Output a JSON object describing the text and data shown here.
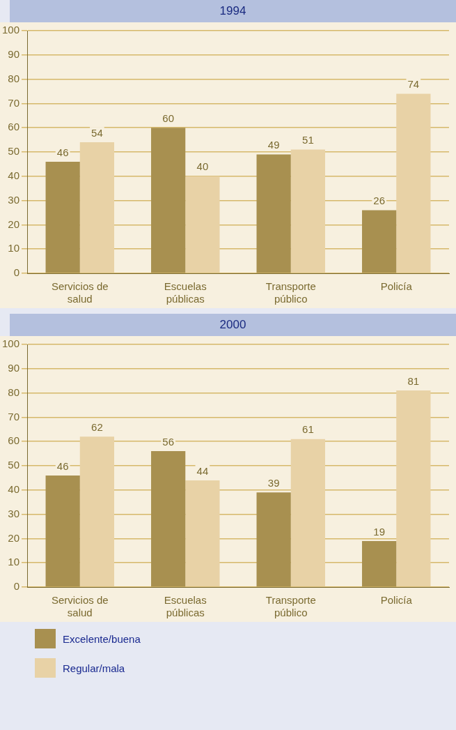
{
  "chart_data": [
    {
      "type": "bar",
      "title": "1994",
      "categories": [
        "Servicios de salud",
        "Escuelas públicas",
        "Transporte público",
        "Policía"
      ],
      "series": [
        {
          "color": "#a89050",
          "values": [
            46,
            60,
            49,
            26
          ]
        },
        {
          "color": "#e8d2a6",
          "values": [
            54,
            40,
            51,
            74
          ]
        }
      ],
      "ylim": [
        0,
        100
      ],
      "yticks": [
        0,
        10,
        20,
        30,
        40,
        50,
        60,
        70,
        80,
        90,
        100
      ],
      "grid": "y",
      "data_labels": true,
      "legend": false
    },
    {
      "type": "bar",
      "title": "2000",
      "categories": [
        "Servicios de salud",
        "Escuelas públicas",
        "Transporte público",
        "Policía"
      ],
      "series": [
        {
          "name": "Excelente/buena",
          "color": "#a89050",
          "values": [
            46,
            56,
            39,
            19
          ]
        },
        {
          "name": "Regular/mala",
          "color": "#e8d2a6",
          "values": [
            62,
            44,
            61,
            81
          ]
        }
      ],
      "ylim": [
        0,
        100
      ],
      "yticks": [
        0,
        10,
        20,
        30,
        40,
        50,
        60,
        70,
        80,
        90,
        100
      ],
      "grid": "y",
      "data_labels": true,
      "legend": "bottom"
    }
  ]
}
